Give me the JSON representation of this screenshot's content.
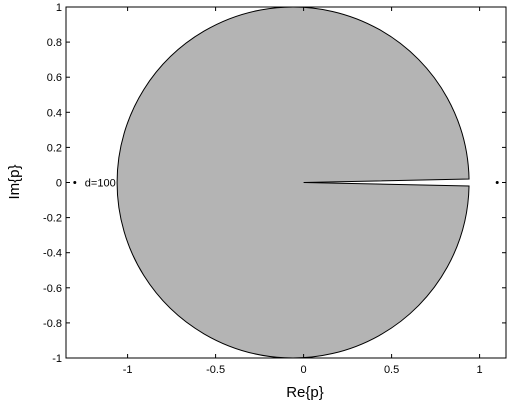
{
  "chart_data": {
    "type": "scatter",
    "title": "",
    "xlabel": "Re{p}",
    "ylabel": "Im{p}",
    "xlim": [
      -1.35,
      1.15
    ],
    "ylim": [
      -1,
      1
    ],
    "grid": false,
    "xticks": [
      {
        "value": -1,
        "label": "-1"
      },
      {
        "value": -0.5,
        "label": "-0.5"
      },
      {
        "value": 0,
        "label": "0"
      },
      {
        "value": 0.5,
        "label": "0.5"
      },
      {
        "value": 1,
        "label": "1"
      }
    ],
    "yticks": [
      {
        "value": 1,
        "label": "1"
      },
      {
        "value": 0.8,
        "label": "0.8"
      },
      {
        "value": 0.6,
        "label": "0.6"
      },
      {
        "value": 0.4,
        "label": "0.4"
      },
      {
        "value": 0.2,
        "label": "0.2"
      },
      {
        "value": 0,
        "label": "0"
      },
      {
        "value": -0.2,
        "label": "-0.2"
      },
      {
        "value": -0.4,
        "label": "-0.4"
      },
      {
        "value": -0.6,
        "label": "-0.6"
      },
      {
        "value": -0.8,
        "label": "-0.8"
      },
      {
        "value": -1,
        "label": "-1"
      }
    ],
    "region": {
      "shape": "disk-with-slit",
      "center": [
        0,
        0
      ],
      "radius": 1,
      "slit_tip": [
        0,
        0
      ],
      "slit_end_re": 0.94,
      "slit_halfwidth_im": 0.02,
      "fill_color": "#b4b4b4",
      "edge_color": "#000000"
    },
    "points": [
      {
        "x": -1.3,
        "y": 0,
        "label": "d=100"
      },
      {
        "x": 1.1,
        "y": 0,
        "label": ""
      }
    ]
  }
}
